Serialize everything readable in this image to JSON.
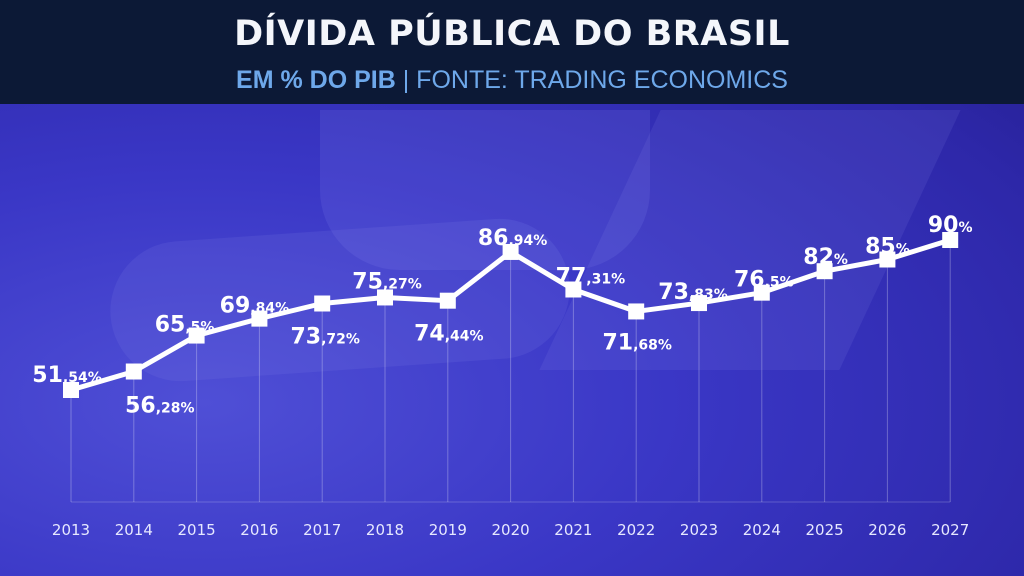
{
  "header": {
    "title": "DÍVIDA PÚBLICA DO BRASIL",
    "subtitle_strong": "EM % DO PIB",
    "subtitle_sep": " | ",
    "subtitle_rest": "FONTE: TRADING ECONOMICS"
  },
  "colors": {
    "header_bg": "#0c1936",
    "subtitle": "#6ea8ea",
    "line": "#ffffff",
    "background": "#3a37c6"
  },
  "chart_data": {
    "type": "line",
    "title": "DÍVIDA PÚBLICA DO BRASIL",
    "subtitle": "EM % DO PIB | FONTE: TRADING ECONOMICS",
    "xlabel": "",
    "ylabel": "",
    "categories": [
      "2013",
      "2014",
      "2015",
      "2016",
      "2017",
      "2018",
      "2019",
      "2020",
      "2021",
      "2022",
      "2023",
      "2024",
      "2025",
      "2026",
      "2027"
    ],
    "values": [
      51.54,
      56.28,
      65.5,
      69.84,
      73.72,
      75.27,
      74.44,
      86.94,
      77.31,
      71.68,
      73.83,
      76.5,
      82,
      85,
      90
    ],
    "labels": [
      {
        "big": "51",
        "small": ",54%"
      },
      {
        "big": "56",
        "small": ",28%"
      },
      {
        "big": "65",
        "small": ",5%"
      },
      {
        "big": "69",
        "small": ",84%"
      },
      {
        "big": "73",
        "small": ",72%"
      },
      {
        "big": "75",
        "small": ",27%"
      },
      {
        "big": "74",
        "small": ",44%"
      },
      {
        "big": "86",
        "small": ",94%"
      },
      {
        "big": "77",
        "small": ",31%"
      },
      {
        "big": "71",
        "small": ",68%"
      },
      {
        "big": "73",
        "small": ",83%"
      },
      {
        "big": "76",
        "small": ",5%"
      },
      {
        "big": "82",
        "small": "%"
      },
      {
        "big": "85",
        "small": "%"
      },
      {
        "big": "90",
        "small": "%"
      }
    ],
    "grid": "vertical lines at each year",
    "legend": "none",
    "marker": "square"
  }
}
